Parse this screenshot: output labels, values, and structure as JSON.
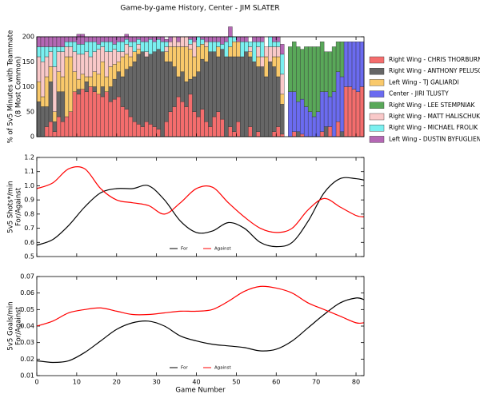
{
  "title": "Game-by-game History, Center - JIM SLATER",
  "chart_data": [
    {
      "type": "bar",
      "stacked": true,
      "ylabel": [
        "% of 5v5 Minutes with Teammate",
        "(8 Most Common)"
      ],
      "xlim": [
        0,
        82
      ],
      "xticks": [
        0,
        10,
        20,
        30,
        40,
        50,
        60,
        70,
        80
      ],
      "ylim": [
        0,
        200
      ],
      "yticks": [
        0,
        50,
        100,
        150,
        200
      ],
      "x": [
        1,
        2,
        3,
        4,
        5,
        6,
        7,
        8,
        9,
        10,
        11,
        12,
        13,
        14,
        15,
        16,
        17,
        18,
        19,
        20,
        21,
        22,
        23,
        24,
        25,
        26,
        27,
        28,
        29,
        30,
        31,
        32,
        33,
        34,
        35,
        36,
        37,
        38,
        39,
        40,
        41,
        42,
        43,
        44,
        45,
        46,
        47,
        48,
        49,
        50,
        51,
        52,
        53,
        54,
        55,
        56,
        57,
        58,
        59,
        60,
        61,
        62,
        63,
        64,
        65,
        66,
        67,
        68,
        69,
        70,
        71,
        72,
        73,
        74,
        75,
        76,
        77,
        78,
        79,
        80,
        81,
        82
      ],
      "series": [
        {
          "name": "Right Wing - CHRIS THORBURN",
          "color": "#f46d6d",
          "values": [
            0,
            0,
            20,
            30,
            10,
            40,
            30,
            40,
            50,
            90,
            85,
            95,
            90,
            100,
            90,
            85,
            80,
            90,
            70,
            75,
            80,
            60,
            55,
            40,
            30,
            25,
            20,
            30,
            25,
            20,
            15,
            0,
            30,
            50,
            60,
            80,
            70,
            60,
            85,
            50,
            40,
            55,
            30,
            20,
            40,
            50,
            35,
            0,
            20,
            10,
            30,
            0,
            0,
            20,
            0,
            10,
            0,
            0,
            0,
            10,
            20,
            5,
            0,
            0,
            10,
            0,
            5,
            0,
            0,
            0,
            0,
            10,
            0,
            20,
            0,
            30,
            0,
            100,
            100,
            95,
            90,
            100
          ]
        },
        {
          "name": "Right Wing - ANTHONY PELUSO",
          "color": "#666666",
          "values": [
            70,
            60,
            40,
            80,
            20,
            50,
            60,
            0,
            0,
            0,
            10,
            0,
            20,
            0,
            10,
            0,
            20,
            0,
            30,
            40,
            50,
            60,
            80,
            100,
            120,
            140,
            150,
            130,
            140,
            150,
            160,
            170,
            120,
            100,
            80,
            40,
            60,
            50,
            30,
            70,
            90,
            100,
            120,
            150,
            130,
            110,
            140,
            160,
            140,
            150,
            130,
            160,
            170,
            140,
            150,
            130,
            140,
            120,
            150,
            130,
            100,
            60,
            0,
            0,
            0,
            10,
            0,
            0,
            0,
            0,
            0,
            0,
            20,
            0,
            0,
            0,
            10,
            0,
            0,
            0,
            0,
            0
          ]
        },
        {
          "name": "Left Wing - TJ GALIARDI",
          "color": "#f9c96b",
          "values": [
            40,
            20,
            60,
            30,
            20,
            40,
            30,
            120,
            110,
            40,
            20,
            30,
            10,
            20,
            30,
            40,
            50,
            30,
            40,
            30,
            20,
            40,
            30,
            20,
            20,
            10,
            0,
            0,
            0,
            0,
            0,
            0,
            20,
            30,
            40,
            60,
            50,
            70,
            60,
            40,
            50,
            30,
            30,
            0,
            0,
            20,
            0,
            0,
            20,
            30,
            30,
            0,
            0,
            10,
            0,
            20,
            0,
            40,
            0,
            20,
            40,
            20,
            0,
            0,
            0,
            0,
            0,
            0,
            0,
            0,
            0,
            0,
            0,
            0,
            0,
            0,
            0,
            0,
            0,
            0,
            0,
            0
          ]
        },
        {
          "name": "Center - JIRI TLUSTY",
          "color": "#6b6bf0",
          "values": [
            0,
            0,
            0,
            0,
            0,
            0,
            0,
            0,
            0,
            0,
            0,
            0,
            0,
            0,
            0,
            0,
            0,
            0,
            0,
            0,
            0,
            0,
            0,
            0,
            0,
            0,
            0,
            0,
            0,
            0,
            0,
            0,
            0,
            0,
            0,
            0,
            0,
            0,
            0,
            0,
            0,
            0,
            0,
            0,
            0,
            0,
            0,
            0,
            0,
            0,
            0,
            0,
            0,
            0,
            0,
            0,
            0,
            0,
            0,
            0,
            0,
            0,
            0,
            90,
            80,
            60,
            70,
            60,
            50,
            40,
            50,
            80,
            70,
            60,
            90,
            100,
            110,
            90,
            90,
            95,
            100,
            90
          ]
        },
        {
          "name": "Right Wing - LEE STEMPNIAK",
          "color": "#59a859",
          "values": [
            0,
            0,
            0,
            0,
            0,
            0,
            0,
            0,
            0,
            0,
            0,
            0,
            0,
            0,
            0,
            0,
            0,
            0,
            0,
            0,
            0,
            0,
            0,
            0,
            0,
            0,
            0,
            0,
            0,
            0,
            0,
            0,
            0,
            0,
            0,
            0,
            0,
            0,
            0,
            0,
            0,
            0,
            0,
            0,
            0,
            0,
            0,
            0,
            0,
            0,
            0,
            0,
            0,
            0,
            0,
            0,
            0,
            0,
            0,
            0,
            0,
            0,
            0,
            90,
            100,
            110,
            100,
            120,
            130,
            140,
            130,
            100,
            80,
            90,
            90,
            60,
            70,
            0,
            0,
            0,
            0,
            0
          ]
        },
        {
          "name": "Right Wing - MATT HALISCHUK",
          "color": "#f9c9c9",
          "values": [
            50,
            70,
            40,
            30,
            90,
            40,
            50,
            20,
            20,
            40,
            50,
            40,
            50,
            40,
            40,
            50,
            30,
            50,
            30,
            30,
            20,
            10,
            20,
            20,
            0,
            10,
            0,
            10,
            0,
            0,
            0,
            0,
            10,
            10,
            20,
            10,
            20,
            20,
            10,
            30,
            0,
            0,
            10,
            0,
            0,
            0,
            0,
            0,
            0,
            0,
            0,
            0,
            0,
            10,
            0,
            20,
            20,
            20,
            30,
            20,
            20,
            40,
            0,
            0,
            0,
            0,
            0,
            0,
            0,
            0,
            0,
            0,
            0,
            0,
            0,
            0,
            0,
            0,
            0,
            0,
            0,
            0
          ]
        },
        {
          "name": "Right Wing - MICHAEL FROLIK",
          "color": "#7af0f0",
          "values": [
            20,
            30,
            20,
            10,
            40,
            10,
            10,
            10,
            10,
            20,
            20,
            20,
            20,
            30,
            20,
            10,
            10,
            20,
            20,
            10,
            20,
            20,
            10,
            10,
            20,
            10,
            20,
            20,
            30,
            20,
            20,
            20,
            10,
            0,
            0,
            0,
            0,
            0,
            10,
            0,
            20,
            10,
            0,
            20,
            20,
            10,
            10,
            30,
            20,
            10,
            0,
            30,
            20,
            10,
            40,
            10,
            30,
            0,
            20,
            10,
            10,
            40,
            0,
            0,
            0,
            0,
            0,
            0,
            0,
            0,
            0,
            0,
            0,
            0,
            0,
            0,
            0,
            0,
            0,
            0,
            0,
            0
          ]
        },
        {
          "name": "Left Wing - DUSTIN BYFUGLIEN",
          "color": "#b467b4",
          "values": [
            20,
            20,
            20,
            20,
            20,
            20,
            20,
            10,
            10,
            10,
            20,
            20,
            10,
            10,
            10,
            15,
            10,
            10,
            10,
            15,
            10,
            10,
            10,
            10,
            10,
            5,
            10,
            10,
            5,
            10,
            5,
            10,
            5,
            10,
            0,
            10,
            0,
            0,
            5,
            10,
            0,
            5,
            10,
            10,
            10,
            10,
            15,
            10,
            20,
            0,
            10,
            10,
            10,
            0,
            10,
            10,
            10,
            0,
            0,
            10,
            10,
            20,
            0,
            0,
            0,
            0,
            0,
            0,
            0,
            0,
            0,
            0,
            0,
            0,
            0,
            0,
            0,
            0,
            0,
            0,
            0,
            0
          ]
        }
      ]
    },
    {
      "type": "line",
      "ylabel": [
        "5v5 Shots*/min",
        "For/Against"
      ],
      "xlim": [
        0,
        82
      ],
      "xticks": [
        0,
        10,
        20,
        30,
        40,
        50,
        60,
        70,
        80
      ],
      "ylim": [
        0.5,
        1.2
      ],
      "yticks": [
        0.5,
        0.6,
        0.7,
        0.8,
        0.9,
        {
          "value": 1,
          "label": "1.0"
        },
        1.1,
        1.2
      ],
      "x": [
        0,
        4,
        8,
        12,
        16,
        20,
        24,
        28,
        32,
        36,
        40,
        44,
        48,
        52,
        56,
        60,
        64,
        68,
        72,
        76,
        80,
        82
      ],
      "series": [
        {
          "name": "For",
          "color": "#000000",
          "values": [
            0.58,
            0.62,
            0.72,
            0.85,
            0.95,
            0.98,
            0.98,
            1.0,
            0.9,
            0.75,
            0.67,
            0.68,
            0.74,
            0.7,
            0.6,
            0.57,
            0.6,
            0.75,
            0.95,
            1.05,
            1.05,
            1.04
          ]
        },
        {
          "name": "Against",
          "color": "#ff0000",
          "values": [
            0.98,
            1.02,
            1.12,
            1.12,
            0.98,
            0.9,
            0.88,
            0.86,
            0.8,
            0.88,
            0.98,
            0.99,
            0.88,
            0.78,
            0.7,
            0.67,
            0.7,
            0.83,
            0.91,
            0.85,
            0.79,
            0.78
          ]
        }
      ]
    },
    {
      "type": "line",
      "ylabel": [
        "5v5 Goals/min",
        "For/Against"
      ],
      "xlabel": "Game Number",
      "xlim": [
        0,
        82
      ],
      "xticks": [
        0,
        10,
        20,
        30,
        40,
        50,
        60,
        70,
        80
      ],
      "ylim": [
        0.01,
        0.07
      ],
      "yticks": [
        0.01,
        0.02,
        0.03,
        0.04,
        0.05,
        0.06,
        0.07
      ],
      "x": [
        0,
        4,
        8,
        12,
        16,
        20,
        24,
        28,
        32,
        36,
        40,
        44,
        48,
        52,
        56,
        60,
        64,
        68,
        72,
        76,
        80,
        82
      ],
      "series": [
        {
          "name": "For",
          "color": "#000000",
          "values": [
            0.019,
            0.018,
            0.019,
            0.024,
            0.031,
            0.038,
            0.042,
            0.043,
            0.04,
            0.034,
            0.031,
            0.029,
            0.028,
            0.027,
            0.025,
            0.026,
            0.031,
            0.039,
            0.047,
            0.054,
            0.057,
            0.056
          ]
        },
        {
          "name": "Against",
          "color": "#ff0000",
          "values": [
            0.04,
            0.043,
            0.048,
            0.05,
            0.051,
            0.049,
            0.047,
            0.047,
            0.048,
            0.049,
            0.049,
            0.05,
            0.055,
            0.061,
            0.064,
            0.063,
            0.06,
            0.054,
            0.05,
            0.046,
            0.042,
            0.042
          ]
        }
      ]
    }
  ]
}
